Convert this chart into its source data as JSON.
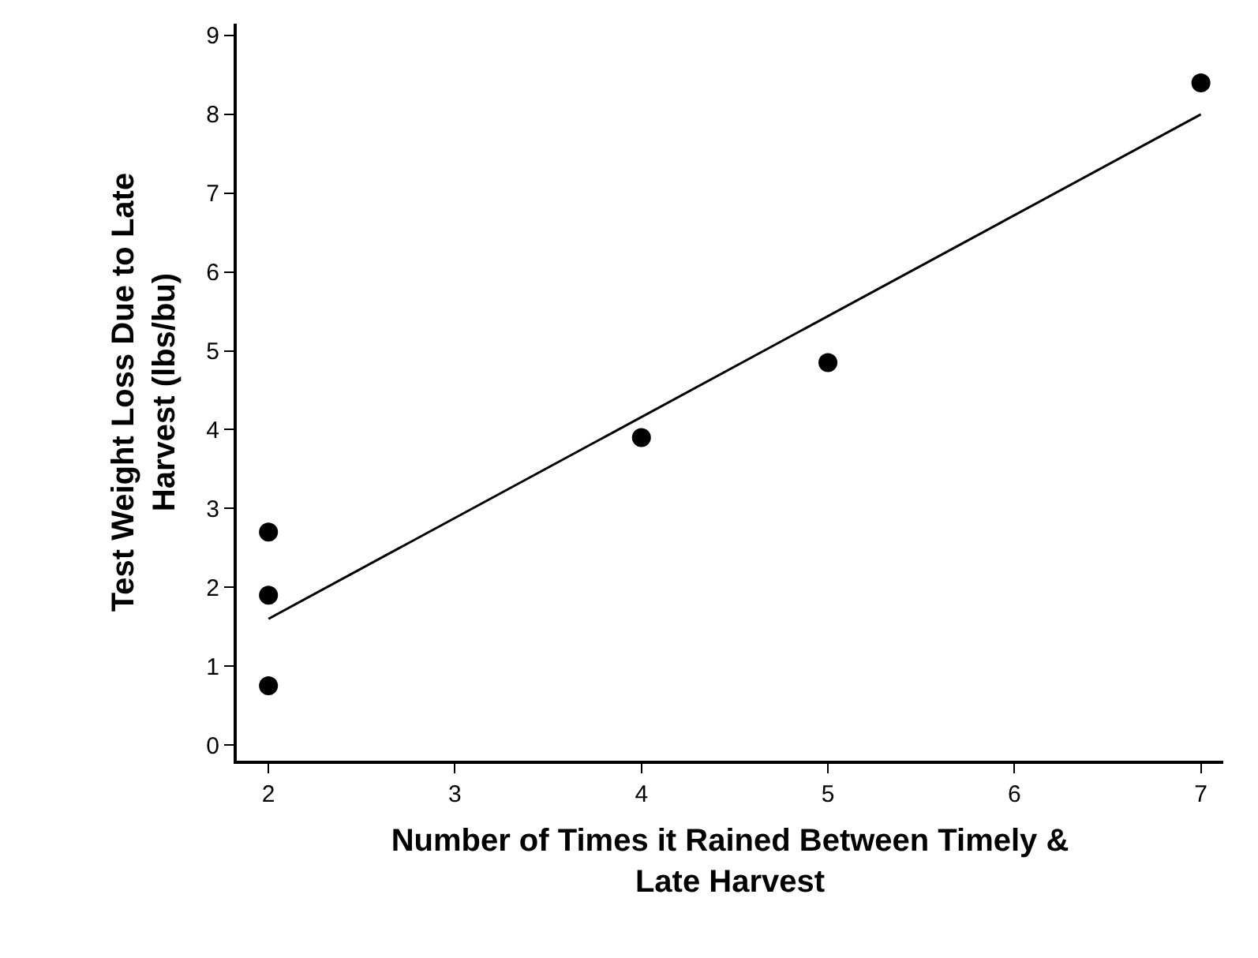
{
  "chart_data": {
    "type": "scatter",
    "xlabel": "Number of Times it Rained Between Timely &\nLate Harvest",
    "ylabel": "Test Weight Loss Due to Late\nHarvest (lbs/bu)",
    "series": [
      {
        "color": "#000000",
        "marker": "circle",
        "x": [
          2,
          2,
          2,
          4,
          5,
          7
        ],
        "values": [
          2.7,
          1.9,
          0.75,
          3.9,
          4.85,
          8.4
        ]
      },
      {
        "type": "line",
        "marker": "none",
        "color": "#000000",
        "x": [
          2,
          7
        ],
        "values": [
          1.6,
          8.0
        ]
      }
    ],
    "xlim": [
      1.83,
      7.12
    ],
    "xticks": [
      2,
      3,
      4,
      5,
      6,
      7
    ],
    "ylim": [
      -0.2,
      9.15
    ],
    "yticks": [
      0,
      1,
      2,
      3,
      4,
      5,
      6,
      7,
      8,
      9
    ],
    "grid": false,
    "legend": false
  }
}
